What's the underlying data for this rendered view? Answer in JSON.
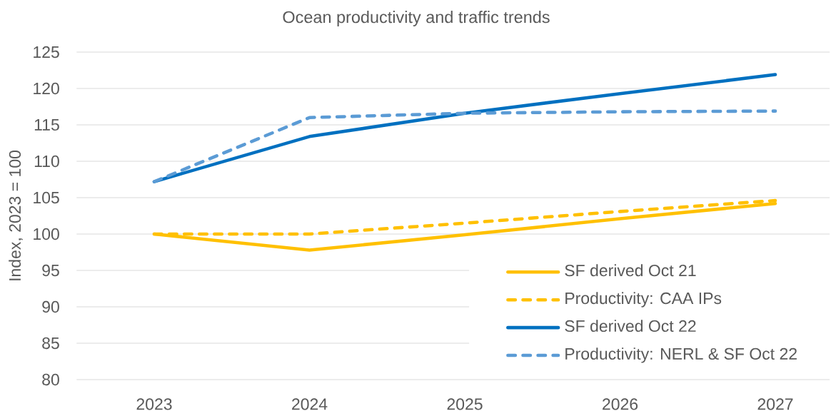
{
  "chart_data": {
    "type": "line",
    "title": "Ocean productivity and traffic trends",
    "ylabel": "Index, 2023 = 100",
    "categories": [
      "2023",
      "2024",
      "2025",
      "2026",
      "2027"
    ],
    "series": [
      {
        "name": "SF derived Oct 21",
        "color": "#ffc000",
        "line_style": "solid",
        "values": [
          100,
          97.8,
          99.9,
          102.1,
          104.2
        ]
      },
      {
        "name": "Productivity: CAA IPs",
        "color": "#ffc000",
        "line_style": "dashed",
        "values": [
          100,
          100,
          101.5,
          103.1,
          104.6
        ]
      },
      {
        "name": "SF derived Oct 22",
        "color": "#0070c0",
        "line_style": "solid",
        "values": [
          107.2,
          113.4,
          116.6,
          119.3,
          121.9
        ]
      },
      {
        "name": "Productivity: NERL & SF Oct 22",
        "color": "#5b9bd5",
        "line_style": "dashed",
        "values": [
          107.2,
          116.0,
          116.6,
          116.8,
          116.9
        ]
      }
    ],
    "ylim": [
      80,
      125
    ],
    "yticks": [
      80,
      85,
      90,
      95,
      100,
      105,
      110,
      115,
      120,
      125
    ],
    "grid": "y",
    "legend": "bottom right"
  }
}
